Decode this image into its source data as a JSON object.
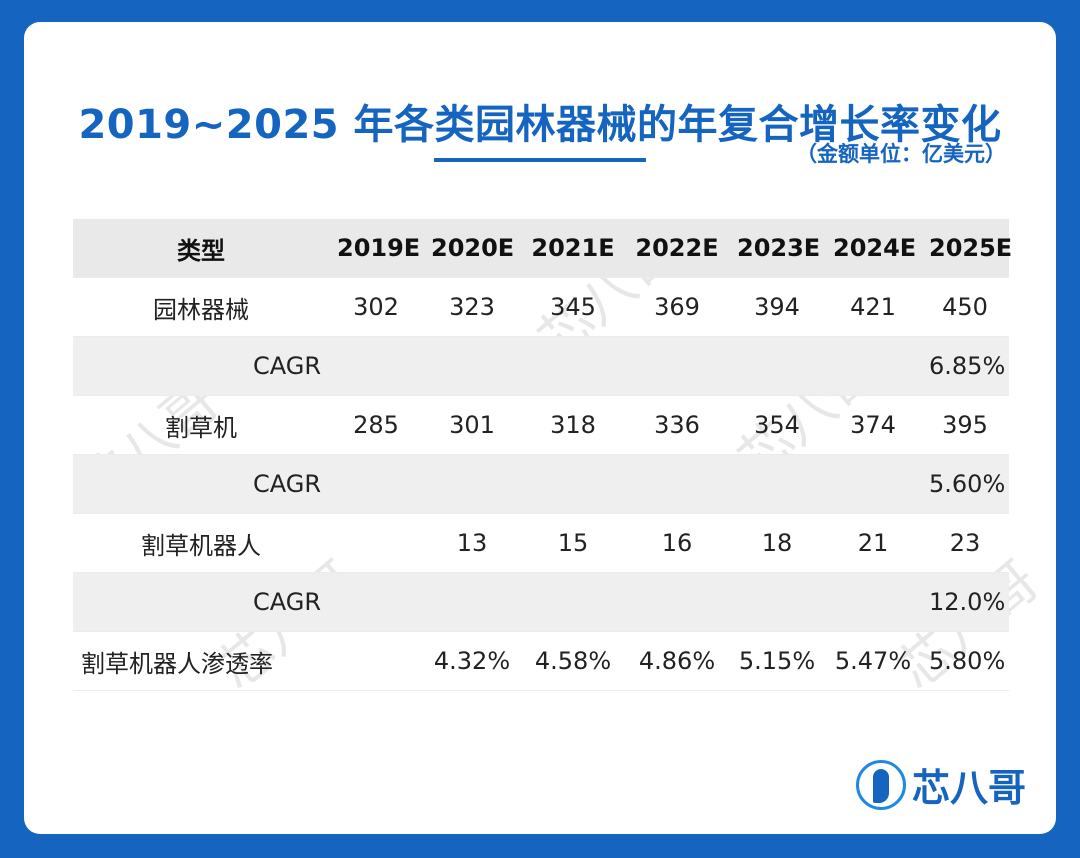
{
  "title": "2019~2025 年各类园林器械的年复合增长率变化",
  "unit_note": "（金额单位：亿美元）",
  "table": {
    "headers": [
      "类型",
      "2019E",
      "2020E",
      "2021E",
      "2022E",
      "2023E",
      "2024E",
      "2025E"
    ],
    "rows": [
      {
        "label": "园林器械",
        "values": [
          "302",
          "323",
          "345",
          "369",
          "394",
          "421",
          "450"
        ]
      },
      {
        "label": "CAGR",
        "values": [
          "",
          "",
          "",
          "",
          "",
          "",
          "6.85%"
        ]
      },
      {
        "label": "割草机",
        "values": [
          "285",
          "301",
          "318",
          "336",
          "354",
          "374",
          "395"
        ]
      },
      {
        "label": "CAGR",
        "values": [
          "",
          "",
          "",
          "",
          "",
          "",
          "5.60%"
        ]
      },
      {
        "label": "割草机器人",
        "values": [
          "",
          "13",
          "15",
          "16",
          "18",
          "21",
          "23"
        ]
      },
      {
        "label": "CAGR",
        "values": [
          "",
          "",
          "",
          "",
          "",
          "",
          "12.0%"
        ]
      },
      {
        "label": "割草机器人渗透率",
        "values": [
          "",
          "4.32%",
          "4.58%",
          "4.86%",
          "5.15%",
          "5.47%",
          "5.80%"
        ]
      }
    ]
  },
  "watermark_text": "芯八哥",
  "logo_text": "芯八哥",
  "colors": {
    "brand_blue": "#1565c0",
    "header_gray": "#e9e9e9",
    "row_shade": "#efefef"
  }
}
